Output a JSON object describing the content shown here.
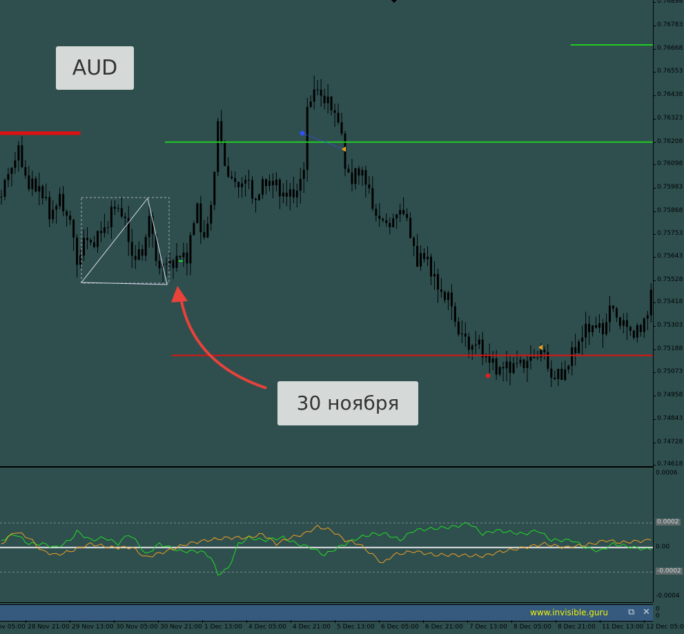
{
  "chart_data": {
    "type": "candlestick",
    "symbol_note": "AUD",
    "annotation": "30 ноября",
    "ylim": [
      0.74618,
      0.76898
    ],
    "y_ticks": [
      "0.76898",
      "0.76783",
      "0.76668",
      "0.76553",
      "0.76438",
      "0.76323",
      "0.76208",
      "0.76098",
      "0.75983",
      "0.75868",
      "0.75753",
      "0.75643",
      "0.75528",
      "0.75418",
      "0.75303",
      "0.75188",
      "0.75073",
      "0.74958",
      "0.74843",
      "0.74728",
      "0.74618"
    ],
    "x_ticks": [
      "28 Nov 05:00",
      "28 Nov 21:00",
      "29 Nov 13:00",
      "30 Nov 05:00",
      "30 Nov 21:00",
      "1 Dec 13:00",
      "4 Dec 05:00",
      "4 Dec 21:00",
      "5 Dec 13:00",
      "6 Dec 05:00",
      "6 Dec 21:00",
      "7 Dec 13:00",
      "8 Dec 05:00",
      "8 Dec 21:00",
      "11 Dec 13:00",
      "12 Dec 05:00"
    ],
    "close_keypoints": [
      [
        0,
        0.75939
      ],
      [
        2,
        0.76058
      ],
      [
        5,
        0.7616
      ],
      [
        8,
        0.7599
      ],
      [
        11,
        0.7599
      ],
      [
        14,
        0.75854
      ],
      [
        17,
        0.75922
      ],
      [
        20,
        0.7582
      ],
      [
        22,
        0.75616
      ],
      [
        24,
        0.75718
      ],
      [
        27,
        0.75718
      ],
      [
        30,
        0.75786
      ],
      [
        33,
        0.75888
      ],
      [
        35,
        0.75871
      ],
      [
        38,
        0.7565
      ],
      [
        41,
        0.7565
      ],
      [
        43,
        0.75854
      ],
      [
        45,
        0.75616
      ],
      [
        48,
        0.75599
      ],
      [
        51,
        0.75633
      ],
      [
        54,
        0.7565
      ],
      [
        57,
        0.75888
      ],
      [
        59,
        0.75718
      ],
      [
        61,
        0.75888
      ],
      [
        63,
        0.76296
      ],
      [
        65,
        0.76092
      ],
      [
        68,
        0.7599
      ],
      [
        71,
        0.76024
      ],
      [
        74,
        0.75922
      ],
      [
        77,
        0.76024
      ],
      [
        80,
        0.7599
      ],
      [
        83,
        0.75939
      ],
      [
        86,
        0.75973
      ],
      [
        88,
        0.76058
      ],
      [
        89,
        0.76398
      ],
      [
        92,
        0.76466
      ],
      [
        95,
        0.76398
      ],
      [
        98,
        0.7633
      ],
      [
        100,
        0.76092
      ],
      [
        102,
        0.76024
      ],
      [
        105,
        0.76075
      ],
      [
        108,
        0.75888
      ],
      [
        111,
        0.75803
      ],
      [
        114,
        0.7582
      ],
      [
        117,
        0.75888
      ],
      [
        119,
        0.75735
      ],
      [
        121,
        0.75633
      ],
      [
        124,
        0.75633
      ],
      [
        127,
        0.7548
      ],
      [
        130,
        0.75446
      ],
      [
        133,
        0.75276
      ],
      [
        136,
        0.75208
      ],
      [
        139,
        0.75208
      ],
      [
        142,
        0.75123
      ],
      [
        145,
        0.75089
      ],
      [
        148,
        0.75106
      ],
      [
        152,
        0.75123
      ],
      [
        155,
        0.7514
      ],
      [
        157,
        0.75191
      ],
      [
        160,
        0.75055
      ],
      [
        163,
        0.75055
      ],
      [
        166,
        0.75157
      ],
      [
        169,
        0.75259
      ],
      [
        172,
        0.7531
      ],
      [
        175,
        0.75276
      ],
      [
        177,
        0.75395
      ],
      [
        180,
        0.75327
      ],
      [
        183,
        0.75276
      ],
      [
        186,
        0.75276
      ],
      [
        189,
        0.75446
      ]
    ],
    "levels": [
      {
        "price": 0.76208,
        "color": "#22cc22",
        "from_bar": 48
      },
      {
        "price": 0.76687,
        "color": "#22cc22",
        "from_bar": 166
      },
      {
        "price": 0.75157,
        "color": "#e01010",
        "from_bar": 50
      },
      {
        "price": 0.76252,
        "color": "#e01010",
        "from_bar": 0,
        "to_bar": 23
      }
    ],
    "indicator": {
      "ylim": [
        -0.0004,
        0.0006
      ],
      "y_ticks": [
        "0.0006",
        "0.0002",
        "0.00",
        "-0.0002",
        "-0.0004"
      ],
      "levels": [
        0.0002,
        0,
        -0.0002
      ],
      "series": [
        {
          "color": "#22dd22",
          "points": [
            [
              0,
              6e-05
            ],
            [
              4,
              0.00011
            ],
            [
              8,
              3e-05
            ],
            [
              12,
              3e-05
            ],
            [
              16,
              0
            ],
            [
              20,
              6e-05
            ],
            [
              22,
              0.00013
            ],
            [
              26,
              6e-05
            ],
            [
              30,
              8e-05
            ],
            [
              34,
              3e-05
            ],
            [
              37,
              0.00011
            ],
            [
              40,
              3e-05
            ],
            [
              42,
              -6e-05
            ],
            [
              46,
              3e-05
            ],
            [
              52,
              -3e-05
            ],
            [
              58,
              -3e-05
            ],
            [
              61,
              -8e-05
            ],
            [
              63,
              -0.00022
            ],
            [
              66,
              -0.00017
            ],
            [
              69,
              3e-05
            ],
            [
              72,
              8e-05
            ],
            [
              76,
              6e-05
            ],
            [
              82,
              8e-05
            ],
            [
              86,
              3e-05
            ],
            [
              90,
              0
            ],
            [
              94,
              -6e-05
            ],
            [
              100,
              3e-05
            ],
            [
              104,
              8e-05
            ],
            [
              108,
              0.00011
            ],
            [
              112,
              0.00011
            ],
            [
              116,
              6e-05
            ],
            [
              120,
              0.00014
            ],
            [
              124,
              0.00015
            ],
            [
              132,
              0.00017
            ],
            [
              136,
              0.0002
            ],
            [
              140,
              0.00011
            ],
            [
              144,
              0.00014
            ],
            [
              152,
              0.00011
            ],
            [
              156,
              0.00014
            ],
            [
              160,
              6e-05
            ],
            [
              166,
              6e-05
            ],
            [
              170,
              0
            ],
            [
              174,
              -3e-05
            ],
            [
              178,
              3e-05
            ],
            [
              184,
              0
            ],
            [
              189,
              -2e-05
            ]
          ]
        },
        {
          "color": "#f0a020",
          "points": [
            [
              0,
              3e-05
            ],
            [
              4,
              0.00013
            ],
            [
              8,
              8e-05
            ],
            [
              12,
              -3e-05
            ],
            [
              16,
              -6e-05
            ],
            [
              20,
              -3e-05
            ],
            [
              26,
              3e-05
            ],
            [
              32,
              0
            ],
            [
              38,
              0
            ],
            [
              42,
              -8e-05
            ],
            [
              48,
              -3e-05
            ],
            [
              54,
              3e-05
            ],
            [
              60,
              6e-05
            ],
            [
              66,
              8e-05
            ],
            [
              72,
              8e-05
            ],
            [
              76,
              0.00011
            ],
            [
              80,
              3e-05
            ],
            [
              84,
              8e-05
            ],
            [
              88,
              0.00011
            ],
            [
              92,
              0.00017
            ],
            [
              96,
              0.00014
            ],
            [
              100,
              6e-05
            ],
            [
              104,
              3e-05
            ],
            [
              108,
              -6e-05
            ],
            [
              111,
              -0.00013
            ],
            [
              114,
              -6e-05
            ],
            [
              120,
              -3e-05
            ],
            [
              126,
              -6e-05
            ],
            [
              132,
              -6e-05
            ],
            [
              140,
              -7e-05
            ],
            [
              146,
              -3e-05
            ],
            [
              152,
              0
            ],
            [
              158,
              3e-05
            ],
            [
              164,
              0
            ],
            [
              172,
              3e-05
            ],
            [
              176,
              6e-05
            ],
            [
              180,
              4e-05
            ],
            [
              189,
              6e-05
            ]
          ]
        }
      ]
    }
  },
  "labels": {
    "aud": "AUD",
    "annotation": "30 ноября"
  },
  "footer": {
    "site": "www.invisible.guru",
    "restore_icon": "⧉",
    "close_icon": "✕",
    "values": [
      "0",
      "0"
    ]
  }
}
